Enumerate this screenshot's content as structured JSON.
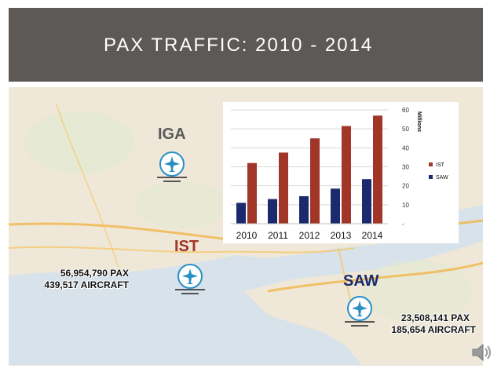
{
  "slide": {
    "title": "PAX TRAFFIC:  2010 - 2014"
  },
  "airports": {
    "iga": {
      "code": "IGA"
    },
    "ist": {
      "code": "IST",
      "pax": "56,954,790 PAX",
      "aircraft": "439,517 AIRCRAFT"
    },
    "saw": {
      "code": "SAW",
      "pax": "23,508,141 PAX",
      "aircraft": "185,654 AIRCRAFT"
    }
  },
  "icons": {
    "plane": "airplane-icon",
    "speaker": "speaker-icon"
  },
  "colors": {
    "title_bg": "#5c5956",
    "ist": "#a03528",
    "saw": "#1a2a6c",
    "iga_label": "#5a5a5a"
  },
  "chart_data": {
    "type": "bar",
    "categories": [
      "2010",
      "2011",
      "2012",
      "2013",
      "2014"
    ],
    "series": [
      {
        "name": "SAW",
        "values": [
          11,
          13,
          14.5,
          18.5,
          23.5
        ],
        "color": "#1a2a6c"
      },
      {
        "name": "IST",
        "values": [
          32,
          37.5,
          45,
          51.5,
          57
        ],
        "color": "#a03528"
      }
    ],
    "ylabel": "Millions",
    "ylim": [
      0,
      60
    ],
    "yticks": [
      "-",
      "10",
      "20",
      "30",
      "40",
      "50",
      "60"
    ],
    "grid": true,
    "legend": "right"
  }
}
